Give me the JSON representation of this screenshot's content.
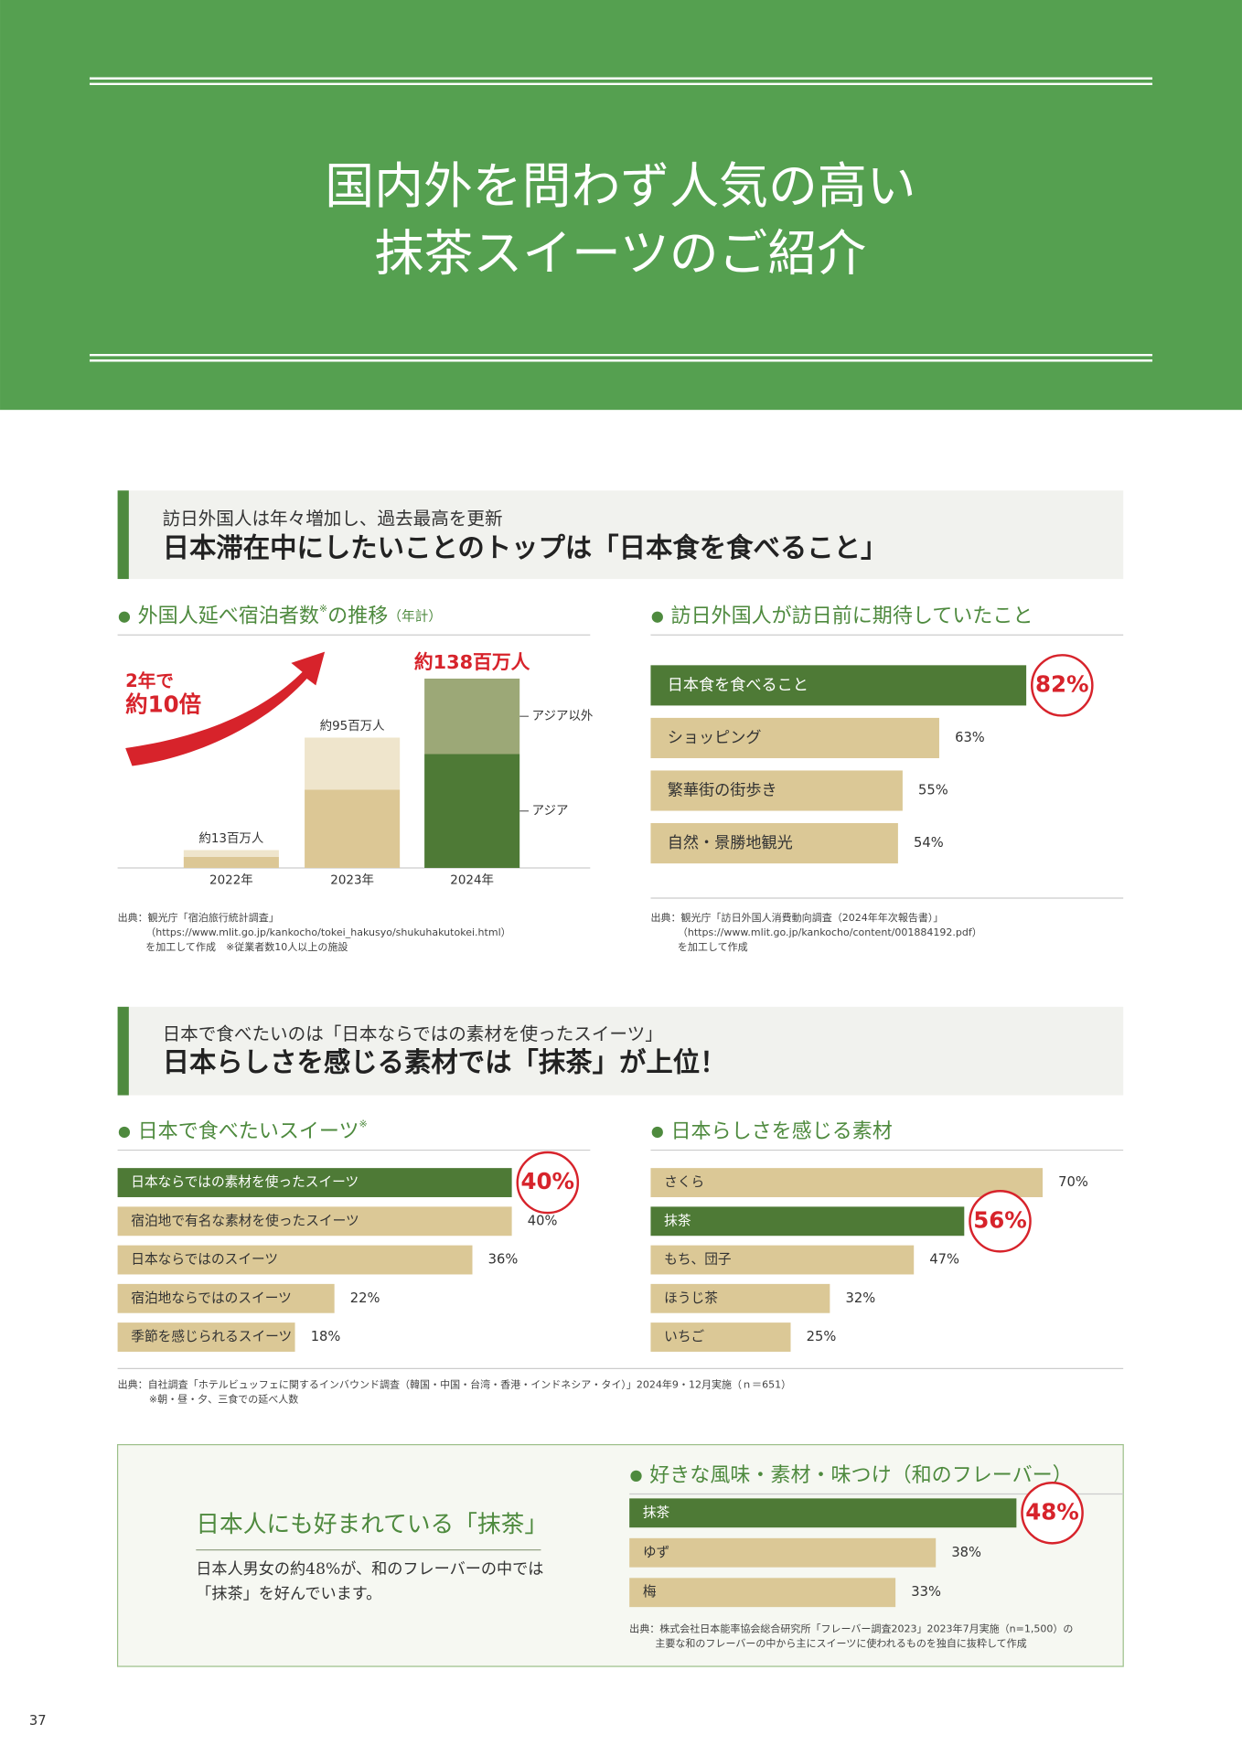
{
  "header": {
    "title": [
      "国内外を問わず人気の高い",
      "抹茶スイーツのご紹介"
    ]
  },
  "section1": {
    "lead": "訪日外国人は年々増加し、過去最高を更新",
    "headline": "日本滞在中にしたいことのトップは「日本食を食べること」"
  },
  "section2": {
    "lead": "日本で食べたいのは「日本ならではの素材を使ったスイーツ」",
    "headline": "日本らしさを感じる素材では「抹茶」が上位！"
  },
  "chart_data": [
    {
      "type": "stacked-bar",
      "title": "外国人延べ宿泊者数",
      "title_mark": "※",
      "title_suffix": "の推移",
      "title_unit": "（年計）",
      "categories": [
        "2022年",
        "2023年",
        "2024年"
      ],
      "series": [
        {
          "name": "アジア",
          "values": [
            8,
            57,
            83
          ],
          "colors": [
            "#dcc795",
            "#dcc795",
            "#4e7a36"
          ]
        },
        {
          "name": "アジア以外",
          "values": [
            5,
            38,
            55
          ],
          "colors": [
            "#efe5cc",
            "#efe5cc",
            "#9ca877"
          ]
        }
      ],
      "totals": [
        13,
        95,
        138
      ],
      "total_labels": [
        "約13百万人",
        "約95百万人",
        "約138百万人"
      ],
      "highlight": 2,
      "annotation": [
        "2年で",
        "約10倍"
      ]
    },
    {
      "type": "hbar",
      "title": "訪日外国人が訪日前に期待していたこと",
      "categories": [
        "日本食を食べること",
        "ショッピング",
        "繁華街の街歩き",
        "自然・景勝地観光"
      ],
      "values": [
        82,
        63,
        55,
        54
      ],
      "value_labels": [
        "82%",
        "63%",
        "55%",
        "54%"
      ],
      "color": "#dbc896",
      "highlight_color": "#4e7a36",
      "highlight": 0
    },
    {
      "type": "hbar",
      "title": "日本で食べたいスイーツ",
      "title_mark": "※",
      "categories": [
        "日本ならではの素材を使ったスイーツ",
        "宿泊地で有名な素材を使ったスイーツ",
        "日本ならではのスイーツ",
        "宿泊地ならではのスイーツ",
        "季節を感じられるスイーツ"
      ],
      "values": [
        40,
        40,
        36,
        22,
        18
      ],
      "value_labels": [
        "40%",
        "40%",
        "36%",
        "22%",
        "18%"
      ],
      "color": "#dbc896",
      "highlight_color": "#4e7a36",
      "highlight": 0
    },
    {
      "type": "hbar",
      "title": "日本らしさを感じる素材",
      "categories": [
        "さくら",
        "抹茶",
        "もち、団子",
        "ほうじ茶",
        "いちご"
      ],
      "values": [
        70,
        56,
        47,
        32,
        25
      ],
      "value_labels": [
        "70%",
        "56%",
        "47%",
        "32%",
        "25%"
      ],
      "color": "#dbc896",
      "highlight_color": "#4e7a36",
      "highlight": 1
    },
    {
      "type": "hbar",
      "title": "好きな風味・素材・味つけ（和のフレーバー）",
      "categories": [
        "抹茶",
        "ゆず",
        "梅"
      ],
      "values": [
        48,
        38,
        33
      ],
      "value_labels": [
        "48%",
        "38%",
        "33%"
      ],
      "color": "#dbc896",
      "highlight_color": "#4e7a36",
      "highlight": 0
    }
  ],
  "sources": {
    "stays": [
      "出典：観光庁「宿泊旅行統計調査」",
      "（https://www.mlit.go.jp/kankocho/tokei_hakusyo/shukuhakutokei.html）",
      "を加工して作成　※従業者数10人以上の施設"
    ],
    "expect": [
      "出典：観光庁「訪日外国人消費動向調査（2024年年次報告書）」",
      "（https://www.mlit.go.jp/kankocho/content/001884192.pdf）",
      "を加工して作成"
    ],
    "survey": [
      "出典：自社調査「ホテルビュッフェに関するインバウンド調査（韓国・中国・台湾・香港・インドネシア・タイ）」2024年9・12月実施（ｎ＝651）",
      "※朝・昼・夕、三食での延べ人数"
    ],
    "flavor": [
      "出典：株式会社日本能率協会総合研究所「フレーバー調査2023」2023年7月実施（n=1,500）の",
      "主要な和のフレーバーの中から主にスイーツに使われるものを独自に抜粋して作成"
    ]
  },
  "box": {
    "title": "日本人にも好まれている「抹茶」",
    "text": [
      "日本人男女の約48%が、和のフレーバーの中では",
      "「抹茶」を好んでいます。"
    ]
  },
  "page_number": "37"
}
